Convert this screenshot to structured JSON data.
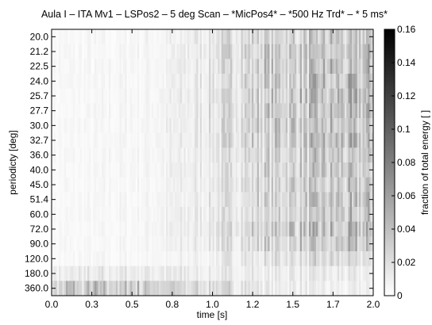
{
  "chart_data": {
    "type": "heatmap",
    "title": "Aula I – ITA Mv1 – LSPos2 – 5 deg Scan – *MicPos4* – *500 Hz Trd* – * 5 ms*",
    "xlabel": "time [s]",
    "ylabel": "periodicty [deg]",
    "colorbar_label": "fraction of total energy [ ]",
    "xlim": [
      0.0,
      2.0
    ],
    "x_ticks": [
      "0.0",
      "0.3",
      "0.5",
      "0.8",
      "1.0",
      "1.2",
      "1.5",
      "1.7",
      "2.0"
    ],
    "y_categories": [
      "20.0",
      "21.2",
      "22.5",
      "24.0",
      "25.7",
      "27.7",
      "30.0",
      "32.7",
      "36.0",
      "40.0",
      "45.0",
      "51.4",
      "60.0",
      "72.0",
      "90.0",
      "120.0",
      "180.0",
      "360.0"
    ],
    "colorbar_ticks": [
      "0",
      "0.02",
      "0.04",
      "0.06",
      "0.08",
      "0.1",
      "0.12",
      "0.14",
      "0.16"
    ],
    "clim": [
      0,
      0.16
    ],
    "colormap": "gray-reversed",
    "approx_row_mean_intensity_early": [
      0.004,
      0.004,
      0.004,
      0.004,
      0.004,
      0.004,
      0.004,
      0.004,
      0.004,
      0.004,
      0.004,
      0.004,
      0.004,
      0.004,
      0.004,
      0.004,
      0.012,
      0.03
    ],
    "approx_row_mean_intensity_late": [
      0.03,
      0.035,
      0.035,
      0.035,
      0.035,
      0.035,
      0.035,
      0.035,
      0.03,
      0.03,
      0.03,
      0.03,
      0.03,
      0.035,
      0.03,
      0.02,
      0.012,
      0.008
    ],
    "grid": false
  }
}
